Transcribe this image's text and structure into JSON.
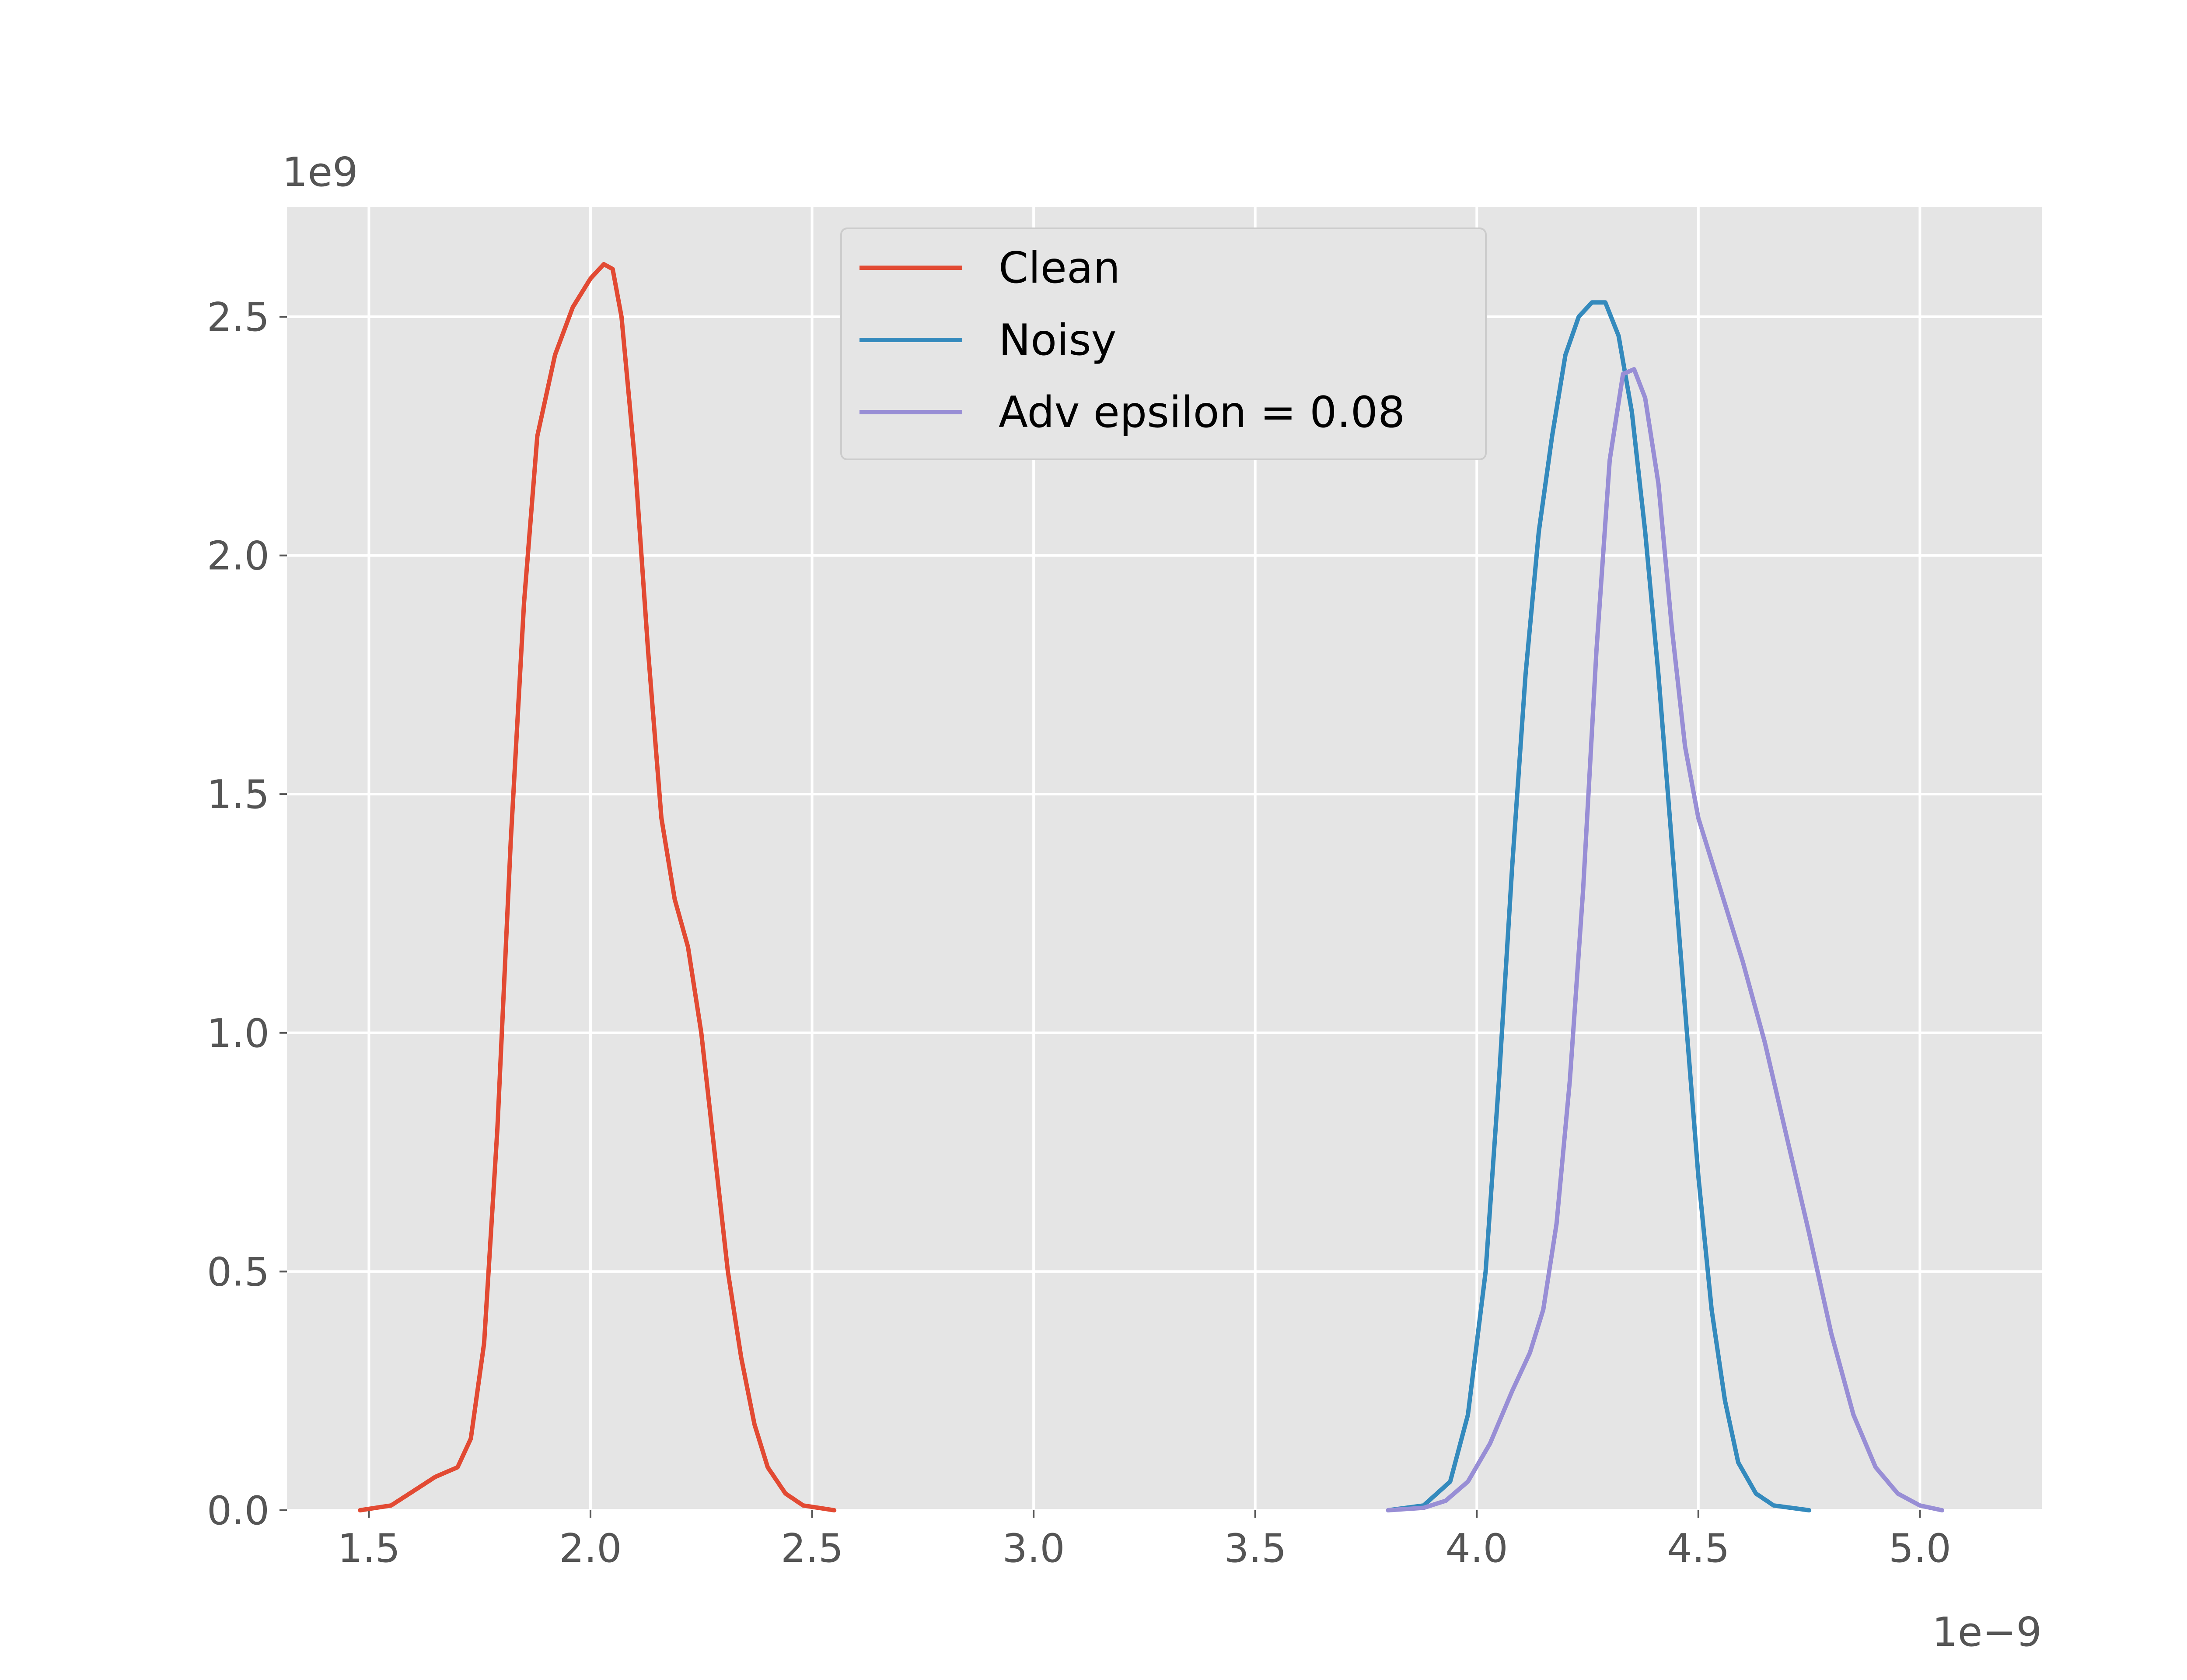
{
  "chart_data": {
    "type": "line",
    "title": "",
    "xlabel": "",
    "ylabel": "",
    "x_offset_label": "1e−9",
    "y_offset_label": "1e9",
    "xlim": [
      1.315,
      5.275
    ],
    "ylim": [
      0.0,
      2.73
    ],
    "x_ticks": [
      1.5,
      2.0,
      2.5,
      3.0,
      3.5,
      4.0,
      4.5,
      5.0
    ],
    "x_tick_labels": [
      "1.5",
      "2.0",
      "2.5",
      "3.0",
      "3.5",
      "4.0",
      "4.5",
      "5.0"
    ],
    "y_ticks": [
      0.0,
      0.5,
      1.0,
      1.5,
      2.0,
      2.5
    ],
    "y_tick_labels": [
      "0.0",
      "0.5",
      "1.0",
      "1.5",
      "2.0",
      "2.5"
    ],
    "grid": true,
    "legend_position": "top-center",
    "series": [
      {
        "name": "Clean",
        "color": "#E24A33",
        "points": [
          [
            1.48,
            0.0
          ],
          [
            1.55,
            0.01
          ],
          [
            1.6,
            0.04
          ],
          [
            1.65,
            0.07
          ],
          [
            1.7,
            0.09
          ],
          [
            1.73,
            0.15
          ],
          [
            1.76,
            0.35
          ],
          [
            1.79,
            0.8
          ],
          [
            1.82,
            1.4
          ],
          [
            1.85,
            1.9
          ],
          [
            1.88,
            2.25
          ],
          [
            1.92,
            2.42
          ],
          [
            1.96,
            2.52
          ],
          [
            2.0,
            2.58
          ],
          [
            2.03,
            2.61
          ],
          [
            2.05,
            2.6
          ],
          [
            2.07,
            2.5
          ],
          [
            2.1,
            2.2
          ],
          [
            2.13,
            1.8
          ],
          [
            2.16,
            1.45
          ],
          [
            2.19,
            1.28
          ],
          [
            2.22,
            1.18
          ],
          [
            2.25,
            1.0
          ],
          [
            2.28,
            0.75
          ],
          [
            2.31,
            0.5
          ],
          [
            2.34,
            0.32
          ],
          [
            2.37,
            0.18
          ],
          [
            2.4,
            0.09
          ],
          [
            2.44,
            0.035
          ],
          [
            2.48,
            0.01
          ],
          [
            2.55,
            0.0
          ]
        ]
      },
      {
        "name": "Noisy",
        "color": "#348ABD",
        "points": [
          [
            3.8,
            0.0
          ],
          [
            3.88,
            0.01
          ],
          [
            3.94,
            0.06
          ],
          [
            3.98,
            0.2
          ],
          [
            4.02,
            0.5
          ],
          [
            4.05,
            0.9
          ],
          [
            4.08,
            1.35
          ],
          [
            4.11,
            1.75
          ],
          [
            4.14,
            2.05
          ],
          [
            4.17,
            2.25
          ],
          [
            4.2,
            2.42
          ],
          [
            4.23,
            2.5
          ],
          [
            4.26,
            2.53
          ],
          [
            4.29,
            2.53
          ],
          [
            4.32,
            2.46
          ],
          [
            4.35,
            2.3
          ],
          [
            4.38,
            2.05
          ],
          [
            4.41,
            1.75
          ],
          [
            4.44,
            1.4
          ],
          [
            4.47,
            1.05
          ],
          [
            4.5,
            0.7
          ],
          [
            4.53,
            0.42
          ],
          [
            4.56,
            0.23
          ],
          [
            4.59,
            0.1
          ],
          [
            4.63,
            0.035
          ],
          [
            4.67,
            0.01
          ],
          [
            4.75,
            0.0
          ]
        ]
      },
      {
        "name": "Adv epsilon = 0.08",
        "color": "#988ED5",
        "points": [
          [
            3.8,
            0.0
          ],
          [
            3.88,
            0.005
          ],
          [
            3.93,
            0.02
          ],
          [
            3.98,
            0.06
          ],
          [
            4.03,
            0.14
          ],
          [
            4.08,
            0.25
          ],
          [
            4.12,
            0.33
          ],
          [
            4.15,
            0.42
          ],
          [
            4.18,
            0.6
          ],
          [
            4.21,
            0.9
          ],
          [
            4.24,
            1.3
          ],
          [
            4.27,
            1.8
          ],
          [
            4.3,
            2.2
          ],
          [
            4.33,
            2.38
          ],
          [
            4.355,
            2.39
          ],
          [
            4.38,
            2.33
          ],
          [
            4.41,
            2.15
          ],
          [
            4.44,
            1.85
          ],
          [
            4.47,
            1.6
          ],
          [
            4.5,
            1.45
          ],
          [
            4.55,
            1.3
          ],
          [
            4.6,
            1.15
          ],
          [
            4.65,
            0.98
          ],
          [
            4.7,
            0.78
          ],
          [
            4.75,
            0.58
          ],
          [
            4.8,
            0.37
          ],
          [
            4.85,
            0.2
          ],
          [
            4.9,
            0.09
          ],
          [
            4.95,
            0.035
          ],
          [
            5.0,
            0.01
          ],
          [
            5.05,
            0.0
          ]
        ]
      }
    ]
  }
}
